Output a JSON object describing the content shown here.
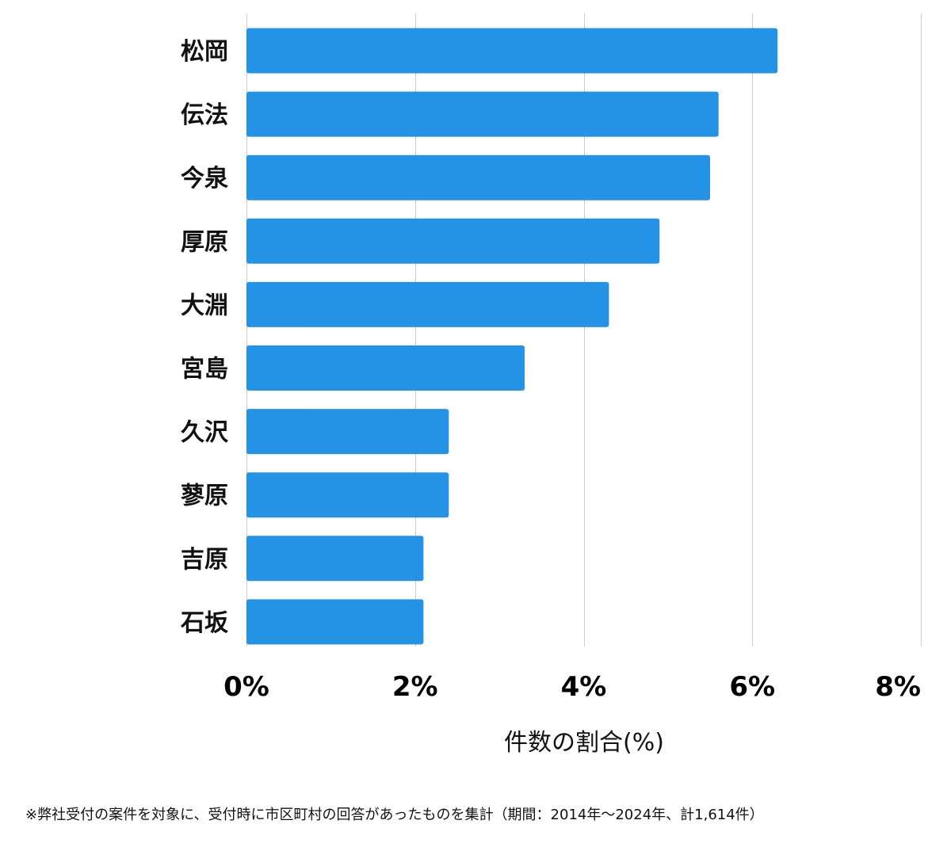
{
  "chart_data": {
    "type": "bar",
    "orientation": "horizontal",
    "categories": [
      "松岡",
      "伝法",
      "今泉",
      "厚原",
      "大淵",
      "宮島",
      "久沢",
      "蓼原",
      "吉原",
      "石坂"
    ],
    "values": [
      6.3,
      5.6,
      5.5,
      4.9,
      4.3,
      3.3,
      2.4,
      2.4,
      2.1,
      2.1
    ],
    "xlabel": "件数の割合(%)",
    "xlim": [
      0,
      8
    ],
    "xticks": [
      0,
      2,
      4,
      6,
      8
    ],
    "xtick_labels": [
      "0%",
      "2%",
      "4%",
      "6%",
      "8%"
    ],
    "grid": true,
    "bar_color": "#2493e5",
    "grid_color": "#cccccc"
  },
  "footnote": "※弊社受付の案件を対象に、受付時に市区町村の回答があったものを集計（期間：2014年～2024年、計1,614件）"
}
